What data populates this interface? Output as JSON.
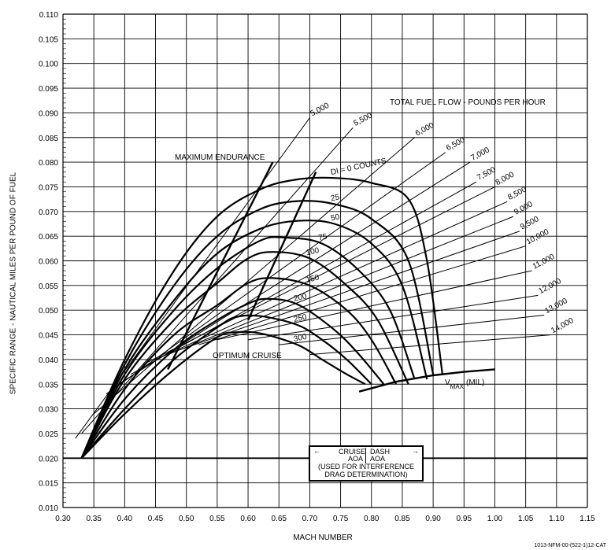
{
  "chart_data": {
    "type": "line",
    "xlabel": "MACH NUMBER",
    "ylabel": "SPECIFIC RANGE - NAUTICAL MILES PER POUND OF FUEL",
    "xlim": [
      0.3,
      1.15
    ],
    "ylim": [
      0.01,
      0.11
    ],
    "x_ticks": [
      "0.30",
      "0.35",
      "0.40",
      "0.45",
      "0.50",
      "0.55",
      "0.60",
      "0.65",
      "0.70",
      "0.75",
      "0.80",
      "0.85",
      "0.90",
      "0.95",
      "1.00",
      "1.05",
      "1.10",
      "1.15"
    ],
    "y_ticks": [
      "0.010",
      "0.015",
      "0.020",
      "0.025",
      "0.030",
      "0.035",
      "0.040",
      "0.045",
      "0.050",
      "0.055",
      "0.060",
      "0.065",
      "0.070",
      "0.075",
      "0.080",
      "0.085",
      "0.090",
      "0.095",
      "0.100",
      "0.105",
      "0.110"
    ],
    "grid": true,
    "fuel_flow_title": "TOTAL FUEL FLOW - POUNDS PER HOUR",
    "drag_index_series": [
      {
        "name": "DI = 0 COUNTS",
        "x": [
          0.33,
          0.4,
          0.48,
          0.55,
          0.62,
          0.68,
          0.74,
          0.8,
          0.86,
          0.89,
          0.915
        ],
        "y": [
          0.02,
          0.04,
          0.058,
          0.069,
          0.0745,
          0.0765,
          0.0768,
          0.0758,
          0.0725,
          0.06,
          0.037
        ]
      },
      {
        "name": "25",
        "x": [
          0.33,
          0.4,
          0.48,
          0.55,
          0.62,
          0.68,
          0.74,
          0.8,
          0.86,
          0.9
        ],
        "y": [
          0.02,
          0.039,
          0.055,
          0.065,
          0.0705,
          0.0721,
          0.0715,
          0.0685,
          0.06,
          0.037
        ]
      },
      {
        "name": "50",
        "x": [
          0.33,
          0.4,
          0.48,
          0.55,
          0.62,
          0.68,
          0.74,
          0.8,
          0.85,
          0.89
        ],
        "y": [
          0.02,
          0.038,
          0.052,
          0.0615,
          0.0665,
          0.0681,
          0.0675,
          0.0635,
          0.055,
          0.036
        ]
      },
      {
        "name": "75",
        "x": [
          0.33,
          0.4,
          0.48,
          0.55,
          0.62,
          0.66,
          0.72,
          0.78,
          0.83,
          0.87
        ],
        "y": [
          0.02,
          0.037,
          0.05,
          0.0585,
          0.0641,
          0.0647,
          0.0635,
          0.058,
          0.05,
          0.036
        ]
      },
      {
        "name": "100",
        "x": [
          0.33,
          0.4,
          0.48,
          0.55,
          0.6,
          0.64,
          0.7,
          0.76,
          0.81,
          0.86
        ],
        "y": [
          0.02,
          0.036,
          0.048,
          0.0555,
          0.0605,
          0.0618,
          0.0605,
          0.055,
          0.048,
          0.035
        ]
      },
      {
        "name": "150",
        "x": [
          0.33,
          0.4,
          0.48,
          0.55,
          0.6,
          0.64,
          0.7,
          0.76,
          0.8,
          0.84
        ],
        "y": [
          0.02,
          0.034,
          0.045,
          0.051,
          0.0555,
          0.0565,
          0.055,
          0.05,
          0.044,
          0.035
        ]
      },
      {
        "name": "200",
        "x": [
          0.33,
          0.4,
          0.48,
          0.55,
          0.6,
          0.63,
          0.68,
          0.74,
          0.78,
          0.82
        ],
        "y": [
          0.02,
          0.032,
          0.042,
          0.048,
          0.0513,
          0.0523,
          0.0512,
          0.046,
          0.041,
          0.035
        ]
      },
      {
        "name": "250",
        "x": [
          0.33,
          0.4,
          0.48,
          0.55,
          0.58,
          0.62,
          0.68,
          0.72,
          0.76,
          0.8
        ],
        "y": [
          0.02,
          0.03,
          0.04,
          0.0465,
          0.0486,
          0.0488,
          0.047,
          0.044,
          0.04,
          0.035
        ]
      },
      {
        "name": "300",
        "x": [
          0.33,
          0.4,
          0.48,
          0.55,
          0.58,
          0.62,
          0.68,
          0.72,
          0.76,
          0.79
        ],
        "y": [
          0.02,
          0.029,
          0.038,
          0.0445,
          0.0455,
          0.0453,
          0.043,
          0.04,
          0.037,
          0.035
        ]
      }
    ],
    "fuel_flow_series": [
      {
        "name": "5,000",
        "x": [
          0.32,
          0.7
        ],
        "y": [
          0.024,
          0.089
        ]
      },
      {
        "name": "5,500",
        "x": [
          0.33,
          0.77
        ],
        "y": [
          0.025,
          0.087
        ]
      },
      {
        "name": "6,000",
        "x": [
          0.35,
          0.87
        ],
        "y": [
          0.029,
          0.085
        ]
      },
      {
        "name": "6,500",
        "x": [
          0.37,
          0.92
        ],
        "y": [
          0.033,
          0.082
        ]
      },
      {
        "name": "7,000",
        "x": [
          0.39,
          0.96
        ],
        "y": [
          0.035,
          0.08
        ]
      },
      {
        "name": "7,500",
        "x": [
          0.41,
          0.97
        ],
        "y": [
          0.037,
          0.076
        ]
      },
      {
        "name": "8,000",
        "x": [
          0.43,
          1.0
        ],
        "y": [
          0.039,
          0.075
        ]
      },
      {
        "name": "8,500",
        "x": [
          0.45,
          1.02
        ],
        "y": [
          0.04,
          0.072
        ]
      },
      {
        "name": "9,000",
        "x": [
          0.47,
          1.03
        ],
        "y": [
          0.041,
          0.069
        ]
      },
      {
        "name": "9,500",
        "x": [
          0.49,
          1.04
        ],
        "y": [
          0.042,
          0.066
        ]
      },
      {
        "name": "10,000",
        "x": [
          0.52,
          1.05
        ],
        "y": [
          0.043,
          0.063
        ]
      },
      {
        "name": "11,000",
        "x": [
          0.55,
          1.06
        ],
        "y": [
          0.044,
          0.058
        ]
      },
      {
        "name": "12,000",
        "x": [
          0.6,
          1.07
        ],
        "y": [
          0.044,
          0.053
        ]
      },
      {
        "name": "13,000",
        "x": [
          0.65,
          1.08
        ],
        "y": [
          0.043,
          0.049
        ]
      },
      {
        "name": "14,000",
        "x": [
          0.7,
          1.09
        ],
        "y": [
          0.041,
          0.045
        ]
      }
    ],
    "reference_lines": [
      {
        "name": "MAXIMUM ENDURANCE",
        "x": [
          0.47,
          0.64
        ],
        "y": [
          0.038,
          0.08
        ]
      },
      {
        "name": "OPTIMUM CRUISE",
        "x": [
          0.6,
          0.71
        ],
        "y": [
          0.048,
          0.078
        ]
      },
      {
        "name": "V MAX (MIL)",
        "x": [
          0.78,
          0.84,
          0.9,
          0.95,
          1.0
        ],
        "y": [
          0.0335,
          0.0355,
          0.0368,
          0.0375,
          0.038
        ]
      }
    ],
    "annotations": {
      "max_endurance": "MAXIMUM ENDURANCE",
      "optimum_cruise": "OPTIMUM CRUISE",
      "vmax": "V",
      "vmax_sub": "MAX",
      "vmax_mil": "(MIL)"
    },
    "aoa_box": {
      "cruise": "CRUISE",
      "dash": "DASH",
      "aoa": "AOA",
      "aoa2": "AOA",
      "used_for": "(USED FOR INTERFERENCE",
      "drag": "DRAG DETERMINATION)"
    },
    "footer": "1013-NFM-00-(522-1)12-CAT"
  }
}
